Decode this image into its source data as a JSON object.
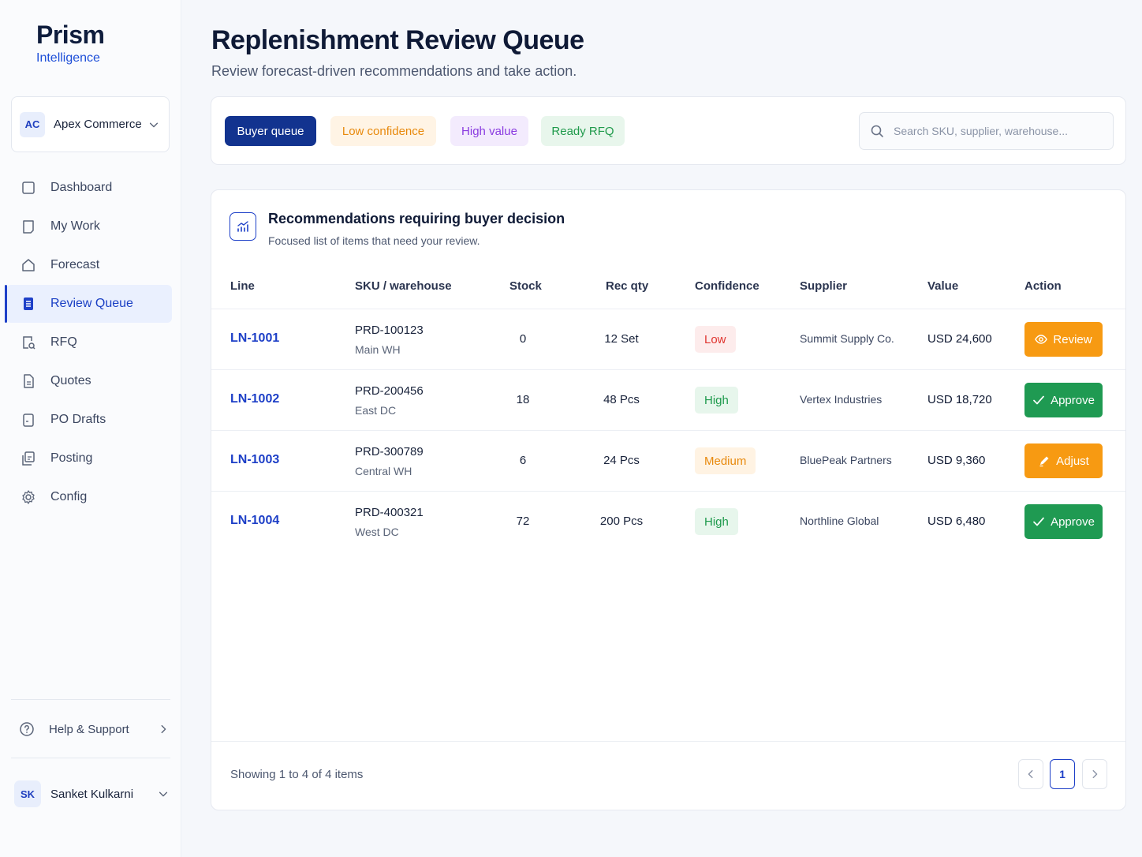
{
  "brand": {
    "name": "Prism",
    "sub": "Intelligence"
  },
  "org": {
    "initials": "AC",
    "name": "Apex Commerce"
  },
  "nav": [
    {
      "label": "Dashboard",
      "icon": "square-icon"
    },
    {
      "label": "My Work",
      "icon": "tablet-icon"
    },
    {
      "label": "Forecast",
      "icon": "home-icon"
    },
    {
      "label": "Review Queue",
      "icon": "list-doc-icon",
      "active": true
    },
    {
      "label": "RFQ",
      "icon": "doc-search-icon"
    },
    {
      "label": "Quotes",
      "icon": "doc-icon"
    },
    {
      "label": "PO Drafts",
      "icon": "draft-icon"
    },
    {
      "label": "Posting",
      "icon": "copy-icon"
    },
    {
      "label": "Config",
      "icon": "gear-icon"
    }
  ],
  "help": {
    "label": "Help & Support"
  },
  "user": {
    "initials": "SK",
    "name": "Sanket Kulkarni"
  },
  "page": {
    "title": "Replenishment Review Queue",
    "subtitle": "Review forecast-driven recommendations and take action."
  },
  "filters": {
    "buyer": "Buyer queue",
    "low": "Low confidence",
    "high": "High value",
    "rfq": "Ready RFQ"
  },
  "search": {
    "placeholder": "Search SKU, supplier, warehouse..."
  },
  "card": {
    "title": "Recommendations requiring buyer decision",
    "subtitle": "Focused list of items that need your review."
  },
  "columns": {
    "line": "Line",
    "sku": "SKU / warehouse",
    "stock": "Stock",
    "rec": "Rec qty",
    "conf": "Confidence",
    "supplier": "Supplier",
    "value": "Value",
    "action": "Action"
  },
  "rows": [
    {
      "line": "LN-1001",
      "sku": "PRD-100123",
      "warehouse": "Main WH",
      "stock": "0",
      "rec_qty": "12 Set",
      "confidence": "Low",
      "supplier": "Summit Supply Co.",
      "value": "USD 24,600",
      "action": "Review"
    },
    {
      "line": "LN-1002",
      "sku": "PRD-200456",
      "warehouse": "East DC",
      "stock": "18",
      "rec_qty": "48 Pcs",
      "confidence": "High",
      "supplier": "Vertex Industries",
      "value": "USD 18,720",
      "action": "Approve"
    },
    {
      "line": "LN-1003",
      "sku": "PRD-300789",
      "warehouse": "Central WH",
      "stock": "6",
      "rec_qty": "24 Pcs",
      "confidence": "Medium",
      "supplier": "BluePeak Partners",
      "value": "USD 9,360",
      "action": "Adjust"
    },
    {
      "line": "LN-1004",
      "sku": "PRD-400321",
      "warehouse": "West DC",
      "stock": "72",
      "rec_qty": "200 Pcs",
      "confidence": "High",
      "supplier": "Northline Global",
      "value": "USD 6,480",
      "action": "Approve"
    }
  ],
  "footer": {
    "showing": "Showing 1 to 4 of 4 items",
    "page": "1"
  },
  "colors": {
    "primary": "#12338f",
    "accent": "#1e40c8",
    "orange": "#f79a12",
    "green": "#1f9a52",
    "red": "#e0342f"
  }
}
